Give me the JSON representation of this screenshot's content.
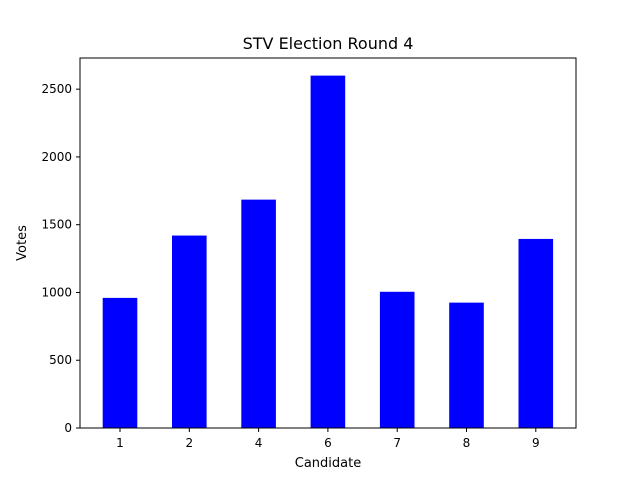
{
  "chart_data": {
    "type": "bar",
    "title": "STV Election Round 4",
    "xlabel": "Candidate",
    "ylabel": "Votes",
    "categories": [
      "1",
      "2",
      "4",
      "6",
      "7",
      "8",
      "9"
    ],
    "values": [
      960,
      1420,
      1685,
      2600,
      1005,
      925,
      1395
    ],
    "ylim": [
      0,
      2730
    ],
    "yticks": [
      0,
      500,
      1000,
      1500,
      2000,
      2500
    ],
    "bar_color": "#0000ff",
    "grid": false
  }
}
